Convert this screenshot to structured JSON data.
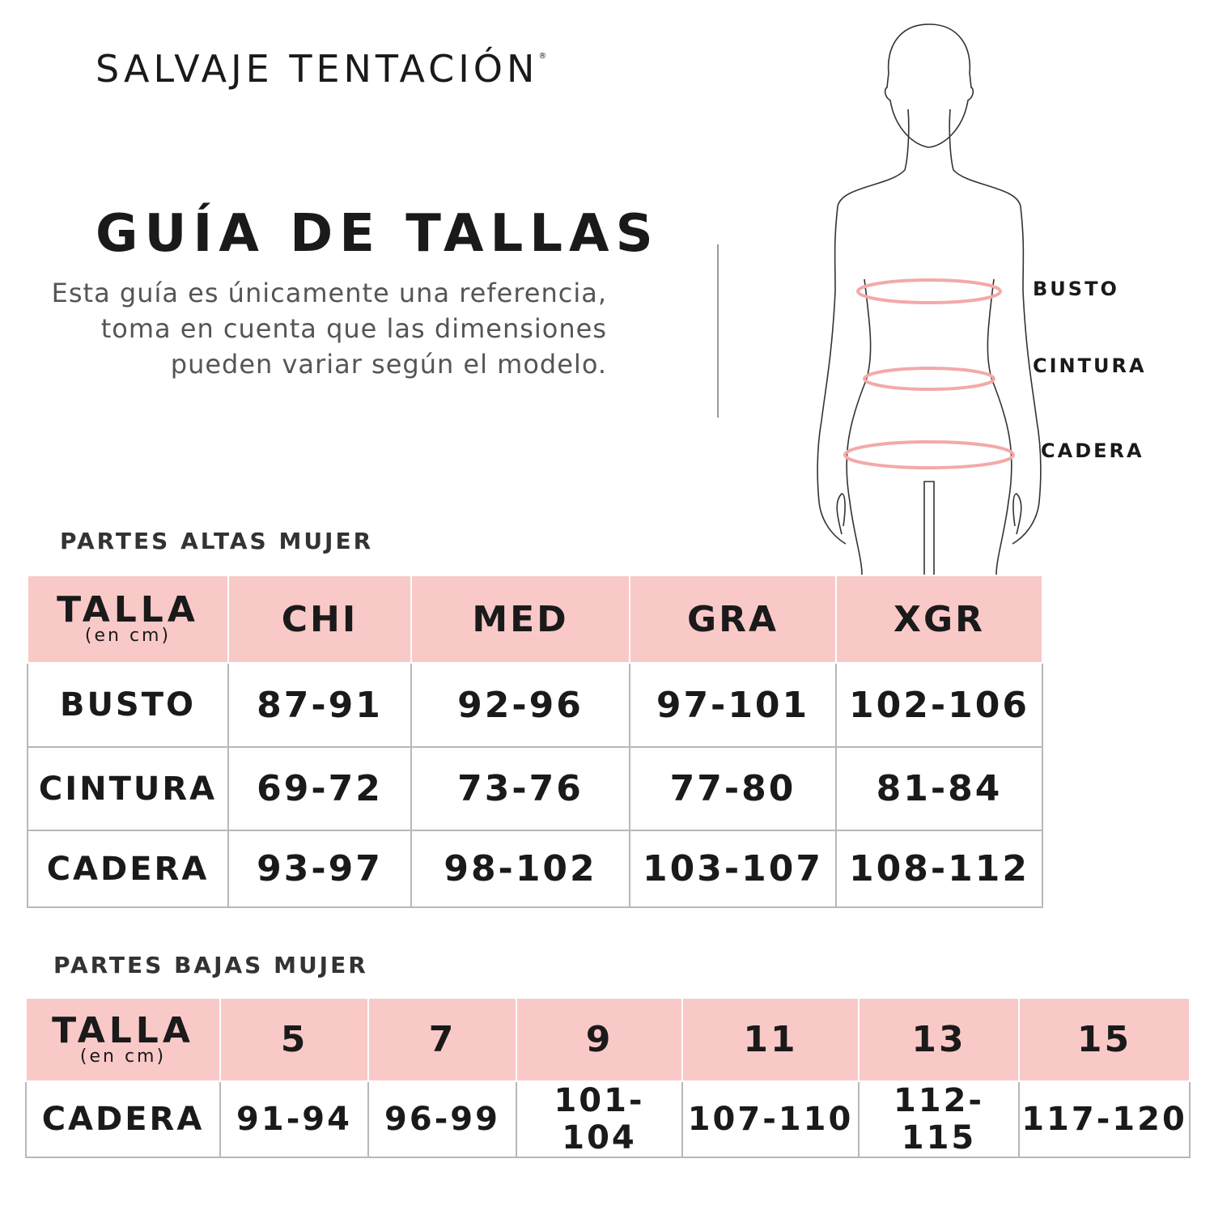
{
  "brand": {
    "name": "SALVAJE TENTACIÓN",
    "mark": "®"
  },
  "title": "GUÍA DE TALLAS",
  "description": "Esta guía es únicamente una referencia, toma en cuenta que las dimensiones pueden variar según el modelo.",
  "figure": {
    "labels": [
      "BUSTO",
      "CINTURA",
      "CADERA"
    ],
    "accent_color": "#f3a9a9"
  },
  "colors": {
    "header_bg": "#f9c9c8",
    "border": "#b8b8b8"
  },
  "upper": {
    "section_title": "PARTES ALTAS MUJER",
    "header": {
      "label": "TALLA",
      "unit": "(en cm)",
      "sizes": [
        "CHI",
        "MED",
        "GRA",
        "XGR"
      ]
    },
    "rows": [
      {
        "label": "BUSTO",
        "values": [
          "87-91",
          "92-96",
          "97-101",
          "102-106"
        ]
      },
      {
        "label": "CINTURA",
        "values": [
          "69-72",
          "73-76",
          "77-80",
          "81-84"
        ]
      },
      {
        "label": "CADERA",
        "values": [
          "93-97",
          "98-102",
          "103-107",
          "108-112"
        ]
      }
    ]
  },
  "lower": {
    "section_title": "PARTES BAJAS MUJER",
    "header": {
      "label": "TALLA",
      "unit": "(en cm)",
      "sizes": [
        "5",
        "7",
        "9",
        "11",
        "13",
        "15"
      ]
    },
    "rows": [
      {
        "label": "CADERA",
        "values": [
          "91-94",
          "96-99",
          "101-104",
          "107-110",
          "112-115",
          "117-120"
        ]
      }
    ]
  }
}
